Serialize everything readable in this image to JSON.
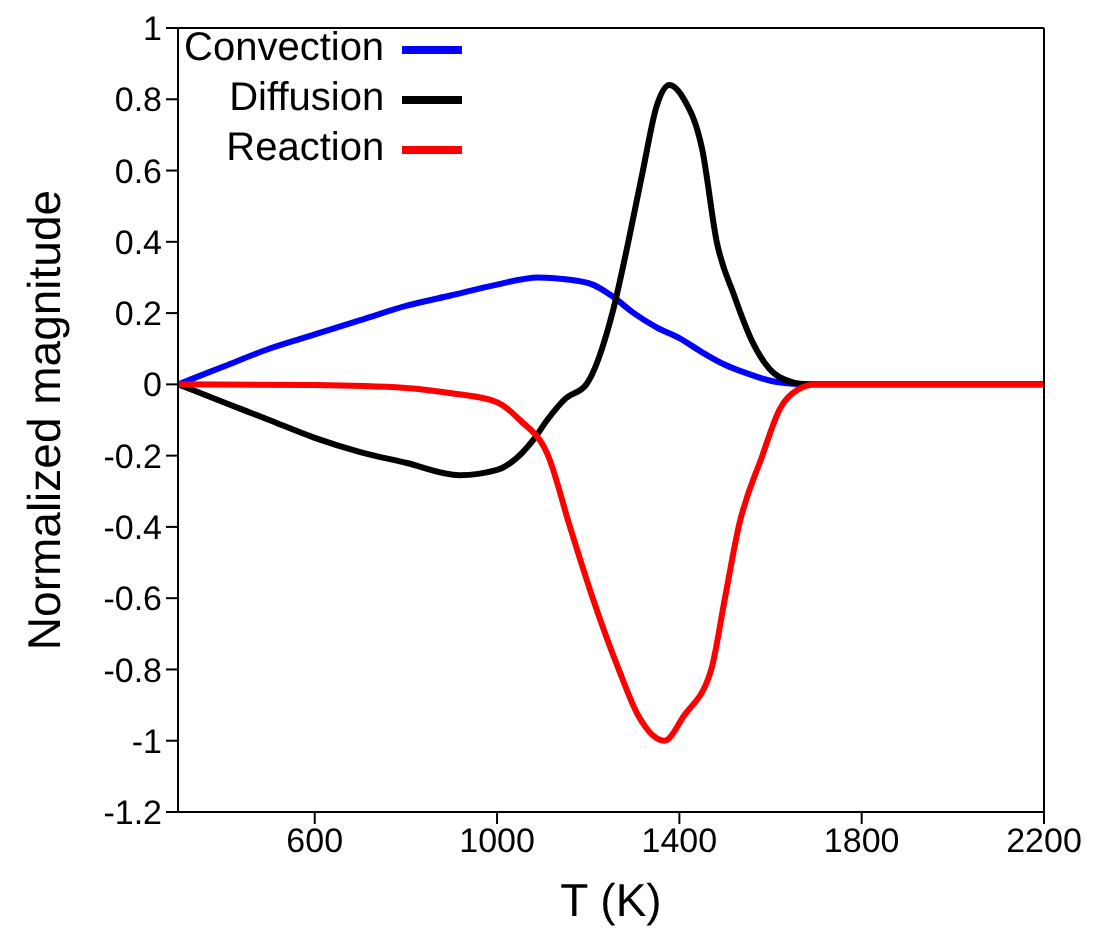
{
  "chart_data": {
    "type": "line",
    "xlabel": "T (K)",
    "ylabel": "Normalized magnitude",
    "xlim": [
      300,
      2200
    ],
    "xticks": [
      600,
      1000,
      1400,
      1800,
      2200
    ],
    "ylim": [
      -1.2,
      1
    ],
    "yticks": [
      -1.2,
      -1,
      -0.8,
      -0.6,
      -0.4,
      -0.2,
      0,
      0.2,
      0.4,
      0.6,
      0.8,
      1
    ],
    "legend": "top left",
    "marker": "none",
    "line_style": "solid",
    "series": [
      {
        "name": "Convection",
        "color": "#0000ff",
        "x": [
          300,
          400,
          500,
          600,
          700,
          800,
          900,
          1000,
          1090,
          1150,
          1210,
          1250,
          1300,
          1350,
          1400,
          1450,
          1500,
          1550,
          1600,
          1650,
          1700,
          2200
        ],
        "values": [
          0,
          0.05,
          0.1,
          0.14,
          0.18,
          0.22,
          0.25,
          0.28,
          0.3,
          0.295,
          0.28,
          0.25,
          0.2,
          0.16,
          0.13,
          0.09,
          0.055,
          0.03,
          0.01,
          0.002,
          0,
          0
        ]
      },
      {
        "name": "Diffusion",
        "color": "#000000",
        "x": [
          300,
          400,
          500,
          600,
          700,
          800,
          918,
          1000,
          1030,
          1080,
          1110,
          1150,
          1196,
          1253,
          1288,
          1320,
          1350,
          1378,
          1410,
          1450,
          1482,
          1520,
          1560,
          1620,
          1680,
          2200
        ],
        "values": [
          0,
          -0.05,
          -0.1,
          -0.15,
          -0.19,
          -0.22,
          -0.255,
          -0.24,
          -0.22,
          -0.155,
          -0.1,
          -0.04,
          0,
          0.2,
          0.4,
          0.6,
          0.78,
          0.84,
          0.8,
          0.66,
          0.4,
          0.25,
          0.12,
          0.02,
          0,
          0
        ]
      },
      {
        "name": "Reaction",
        "color": "#ff0000",
        "x": [
          300,
          600,
          800,
          900,
          1000,
          1050,
          1112,
          1160,
          1210,
          1267,
          1310,
          1367,
          1410,
          1470,
          1500,
          1530,
          1582,
          1620,
          1660,
          1700,
          2200
        ],
        "values": [
          0,
          -0.002,
          -0.01,
          -0.025,
          -0.05,
          -0.1,
          -0.2,
          -0.4,
          -0.6,
          -0.8,
          -0.93,
          -1,
          -0.93,
          -0.8,
          -0.6,
          -0.4,
          -0.2,
          -0.07,
          -0.015,
          0,
          0
        ]
      }
    ]
  }
}
